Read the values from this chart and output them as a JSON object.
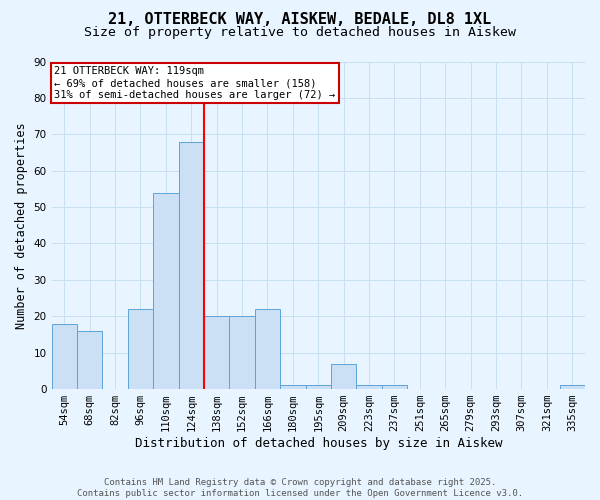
{
  "title": "21, OTTERBECK WAY, AISKEW, BEDALE, DL8 1XL",
  "subtitle": "Size of property relative to detached houses in Aiskew",
  "xlabel": "Distribution of detached houses by size in Aiskew",
  "ylabel": "Number of detached properties",
  "categories": [
    "54sqm",
    "68sqm",
    "82sqm",
    "96sqm",
    "110sqm",
    "124sqm",
    "138sqm",
    "152sqm",
    "166sqm",
    "180sqm",
    "195sqm",
    "209sqm",
    "223sqm",
    "237sqm",
    "251sqm",
    "265sqm",
    "279sqm",
    "293sqm",
    "307sqm",
    "321sqm",
    "335sqm"
  ],
  "values": [
    18,
    16,
    0,
    22,
    54,
    68,
    20,
    20,
    22,
    1,
    1,
    7,
    1,
    1,
    0,
    0,
    0,
    0,
    0,
    0,
    1
  ],
  "bar_color": "#cce0f5",
  "bar_edge_color": "#5ba3d9",
  "grid_color": "#c8dff0",
  "background_color": "#e8f4ff",
  "red_line_x": 5.5,
  "annotation_line1": "21 OTTERBECK WAY: 119sqm",
  "annotation_line2": "← 69% of detached houses are smaller (158)",
  "annotation_line3": "31% of semi-detached houses are larger (72) →",
  "annotation_box_color": "#ffffff",
  "annotation_box_edge": "#cc0000",
  "ylim": [
    0,
    90
  ],
  "yticks": [
    0,
    10,
    20,
    30,
    40,
    50,
    60,
    70,
    80,
    90
  ],
  "footnote_line1": "Contains HM Land Registry data © Crown copyright and database right 2025.",
  "footnote_line2": "Contains public sector information licensed under the Open Government Licence v3.0.",
  "title_fontsize": 11,
  "subtitle_fontsize": 9.5,
  "xlabel_fontsize": 9,
  "ylabel_fontsize": 8.5,
  "tick_fontsize": 7.5,
  "annot_fontsize": 7.5,
  "footnote_fontsize": 6.5
}
